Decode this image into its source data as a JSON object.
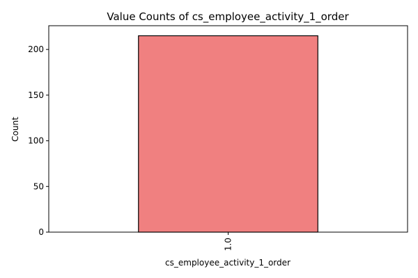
{
  "chart_data": {
    "type": "bar",
    "title": "Value Counts of cs_employee_activity_1_order",
    "xlabel": "cs_employee_activity_1_order",
    "ylabel": "Count",
    "categories": [
      "1.0"
    ],
    "values": [
      215
    ],
    "ylim": [
      0,
      226
    ],
    "yticks": [
      0,
      50,
      100,
      150,
      200
    ],
    "bar_color": "#f08080",
    "edge_color": "#000000",
    "grid": false,
    "legend": "none"
  }
}
